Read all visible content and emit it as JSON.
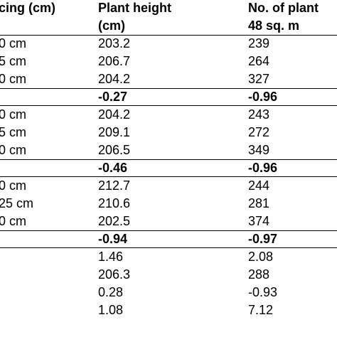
{
  "table": {
    "headers": {
      "spacing": "cing (cm)",
      "plant_height_line1": "Plant height",
      "plant_height_line2": "(cm)",
      "plants_line1": "No. of plant",
      "plants_line2": "48 sq. m"
    },
    "rows": [
      {
        "spacing": "0 cm",
        "height": "203.2",
        "plants": "239",
        "bold": false
      },
      {
        "spacing": "5 cm",
        "height": "206.7",
        "plants": "264",
        "bold": false
      },
      {
        "spacing": "0 cm",
        "height": "204.2",
        "plants": "327",
        "bold": false
      },
      {
        "spacing": "",
        "height": "-0.27",
        "plants": "-0.96",
        "bold": true
      },
      {
        "spacing": "0 cm",
        "height": "204.2",
        "plants": "243",
        "bold": false
      },
      {
        "spacing": "5 cm",
        "height": "209.1",
        "plants": "272",
        "bold": false
      },
      {
        "spacing": "0 cm",
        "height": "206.5",
        "plants": "349",
        "bold": false
      },
      {
        "spacing": "",
        "height": "-0.46",
        "plants": "-0.96",
        "bold": true
      },
      {
        "spacing": "0 cm",
        "height": "212.7",
        "plants": "244",
        "bold": false
      },
      {
        "spacing": "25 cm",
        "height": "210.6",
        "plants": "281",
        "bold": false
      },
      {
        "spacing": "0 cm",
        "height": "202.5",
        "plants": "374",
        "bold": false
      },
      {
        "spacing": "",
        "height": "-0.94",
        "plants": "-0.97",
        "bold": true
      },
      {
        "spacing": "",
        "height": "1.46",
        "plants": "2.08",
        "bold": false
      },
      {
        "spacing": "",
        "height": "206.3",
        "plants": "288",
        "bold": false
      },
      {
        "spacing": "",
        "height": "0.28",
        "plants": "-0.93",
        "bold": false
      },
      {
        "spacing": "",
        "height": "1.08",
        "plants": "7.12",
        "bold": false
      }
    ]
  }
}
